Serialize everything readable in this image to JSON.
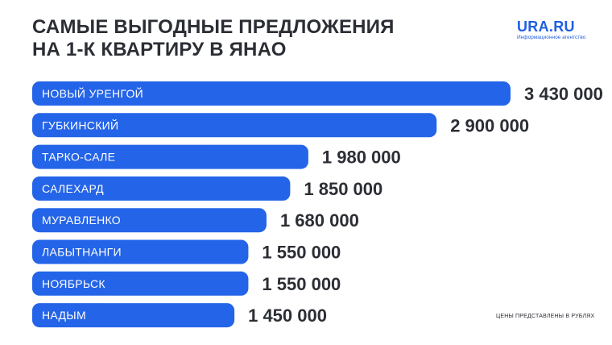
{
  "title": {
    "line1": "САМЫЕ ВЫГОДНЫЕ ПРЕДЛОЖЕНИЯ",
    "line2": "НА 1-К КВАРТИРУ В ЯНАО"
  },
  "logo": {
    "main": "URA.RU",
    "sub": "Информационное агентство"
  },
  "note": "ЦЕНЫ ПРЕДСТАВЛЕНЫ В РУБЛЯХ",
  "colors": {
    "bar": "#2464e8",
    "value_text": "#2b2e34",
    "title_text": "#2b2e34",
    "logo": "#1f5fe0"
  },
  "chart_data": {
    "type": "bar",
    "orientation": "horizontal",
    "categories": [
      "НОВЫЙ УРЕНГОЙ",
      "ГУБКИНСКИЙ",
      "ТАРКО-САЛЕ",
      "САЛЕХАРД",
      "МУРАВЛЕНКО",
      "ЛАБЫТНАНГИ",
      "НОЯБРЬСК",
      "НАДЫМ"
    ],
    "values": [
      3430000,
      2900000,
      1980000,
      1850000,
      1680000,
      1550000,
      1550000,
      1450000
    ],
    "value_labels": [
      "3 430 000",
      "2 900 000",
      "1 980 000",
      "1 850 000",
      "1 680 000",
      "1 550 000",
      "1 550 000",
      "1 450 000"
    ],
    "grid": false,
    "legend": "none"
  }
}
